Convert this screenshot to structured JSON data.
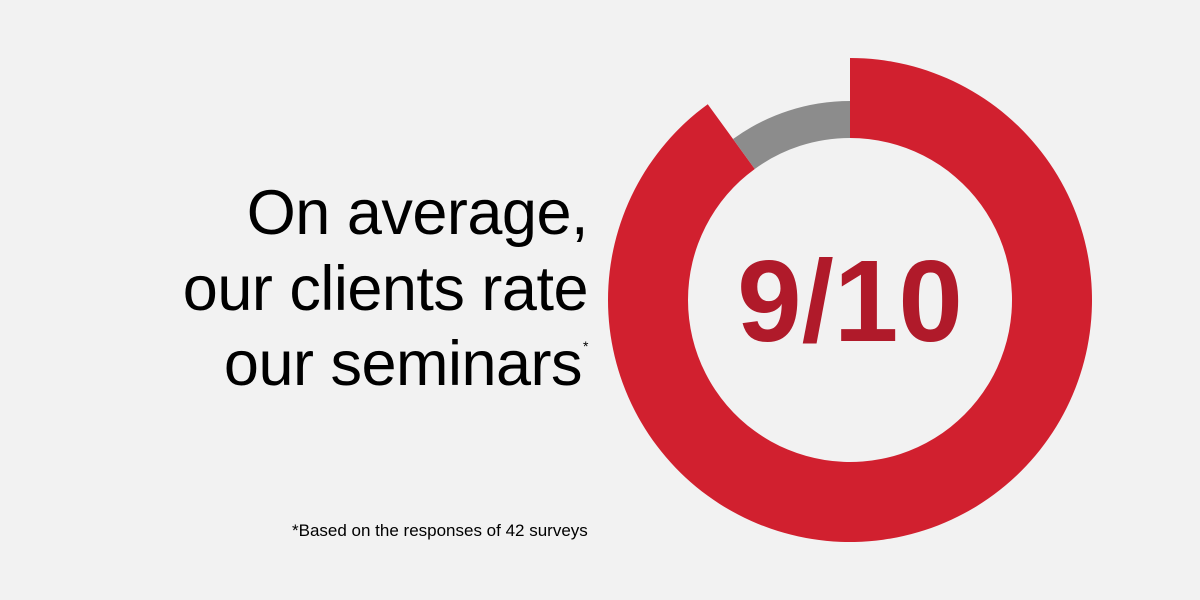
{
  "colors": {
    "background": "#f2f2f2",
    "accent": "#d1202f",
    "accent_text": "#b01a2a",
    "remainder": "#8c8c8c",
    "text": "#000000"
  },
  "headline": {
    "lines": [
      "On average,",
      "our clients rate",
      "our seminars"
    ],
    "marker": "*"
  },
  "footnote": "*Based on the responses of 42 surveys",
  "chart_data": {
    "type": "pie",
    "style": "donut",
    "center_label": "9/10",
    "slices": [
      {
        "value": 9,
        "color": "#d1202f"
      },
      {
        "value": 1,
        "color": "#8c8c8c"
      }
    ],
    "total": 10,
    "emphasized_slice": 0
  }
}
